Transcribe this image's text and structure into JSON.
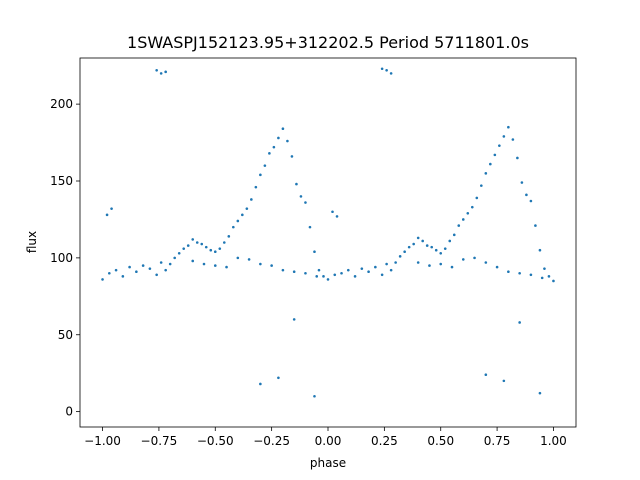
{
  "chart_data": {
    "type": "scatter",
    "title": "1SWASPJ152123.95+312202.5 Period 5711801.0s",
    "xlabel": "phase",
    "ylabel": "flux",
    "xlim": [
      -1.1,
      1.1
    ],
    "ylim": [
      -10,
      230
    ],
    "xticks": [
      -1.0,
      -0.75,
      -0.5,
      -0.25,
      0.0,
      0.25,
      0.5,
      0.75,
      1.0
    ],
    "xtick_labels": [
      "−1.00",
      "−0.75",
      "−0.50",
      "−0.25",
      "0.00",
      "0.25",
      "0.50",
      "0.75",
      "1.00"
    ],
    "yticks": [
      0,
      50,
      100,
      150,
      200
    ],
    "ytick_labels": [
      "0",
      "50",
      "100",
      "150",
      "200"
    ],
    "grid": false,
    "marker_color": "#1f77b4",
    "series": [
      {
        "name": "",
        "x": [
          -1.0,
          -0.97,
          -0.94,
          -0.91,
          -0.88,
          -0.85,
          -0.82,
          -0.79,
          -0.76,
          -0.74,
          -0.72,
          -0.7,
          -0.68,
          -0.66,
          -0.64,
          -0.62,
          -0.6,
          -0.58,
          -0.56,
          -0.54,
          -0.52,
          -0.5,
          -0.48,
          -0.46,
          -0.44,
          -0.42,
          -0.4,
          -0.38,
          -0.36,
          -0.34,
          -0.32,
          -0.3,
          -0.28,
          -0.26,
          -0.24,
          -0.22,
          -0.2,
          -0.18,
          -0.16,
          -0.14,
          -0.12,
          -0.1,
          -0.08,
          -0.06,
          -0.04,
          -0.02,
          0.0,
          0.03,
          0.06,
          0.09,
          0.12,
          0.15,
          0.18,
          0.21,
          0.24,
          0.26,
          0.28,
          0.3,
          0.32,
          0.34,
          0.36,
          0.38,
          0.4,
          0.42,
          0.44,
          0.46,
          0.48,
          0.5,
          0.52,
          0.54,
          0.56,
          0.58,
          0.6,
          0.62,
          0.64,
          0.66,
          0.68,
          0.7,
          0.72,
          0.74,
          0.76,
          0.78,
          0.8,
          0.82,
          0.84,
          0.86,
          0.88,
          0.9,
          0.92,
          0.94,
          0.96,
          0.98,
          1.0,
          -0.6,
          -0.55,
          -0.5,
          -0.45,
          -0.4,
          -0.35,
          -0.3,
          -0.25,
          -0.2,
          -0.15,
          -0.1,
          -0.05,
          0.4,
          0.45,
          0.5,
          0.55,
          0.6,
          0.65,
          0.7,
          0.75,
          0.8,
          0.85,
          0.9,
          0.95,
          -0.76,
          -0.74,
          -0.72,
          0.24,
          0.26,
          0.28,
          -0.98,
          -0.96,
          0.02,
          0.04,
          -0.3,
          -0.22,
          0.7,
          0.78,
          -0.15,
          0.85,
          -0.06,
          0.94
        ],
        "y": [
          86,
          90,
          92,
          88,
          94,
          91,
          95,
          93,
          89,
          97,
          92,
          96,
          100,
          103,
          106,
          108,
          112,
          110,
          109,
          107,
          105,
          104,
          106,
          110,
          114,
          120,
          124,
          128,
          132,
          138,
          146,
          154,
          160,
          168,
          172,
          178,
          184,
          176,
          166,
          148,
          140,
          136,
          120,
          104,
          92,
          88,
          86,
          89,
          90,
          92,
          88,
          93,
          91,
          94,
          89,
          96,
          92,
          97,
          101,
          104,
          107,
          109,
          113,
          111,
          108,
          107,
          105,
          103,
          106,
          111,
          115,
          121,
          125,
          129,
          133,
          139,
          147,
          155,
          161,
          167,
          173,
          179,
          185,
          177,
          165,
          149,
          141,
          137,
          121,
          105,
          93,
          88,
          85,
          98,
          96,
          95,
          94,
          100,
          99,
          96,
          95,
          92,
          91,
          90,
          88,
          97,
          95,
          96,
          94,
          99,
          100,
          97,
          94,
          91,
          90,
          89,
          87,
          222,
          220,
          221,
          223,
          222,
          220,
          128,
          132,
          130,
          127,
          18,
          22,
          24,
          20,
          60,
          58,
          10,
          12
        ]
      }
    ]
  }
}
